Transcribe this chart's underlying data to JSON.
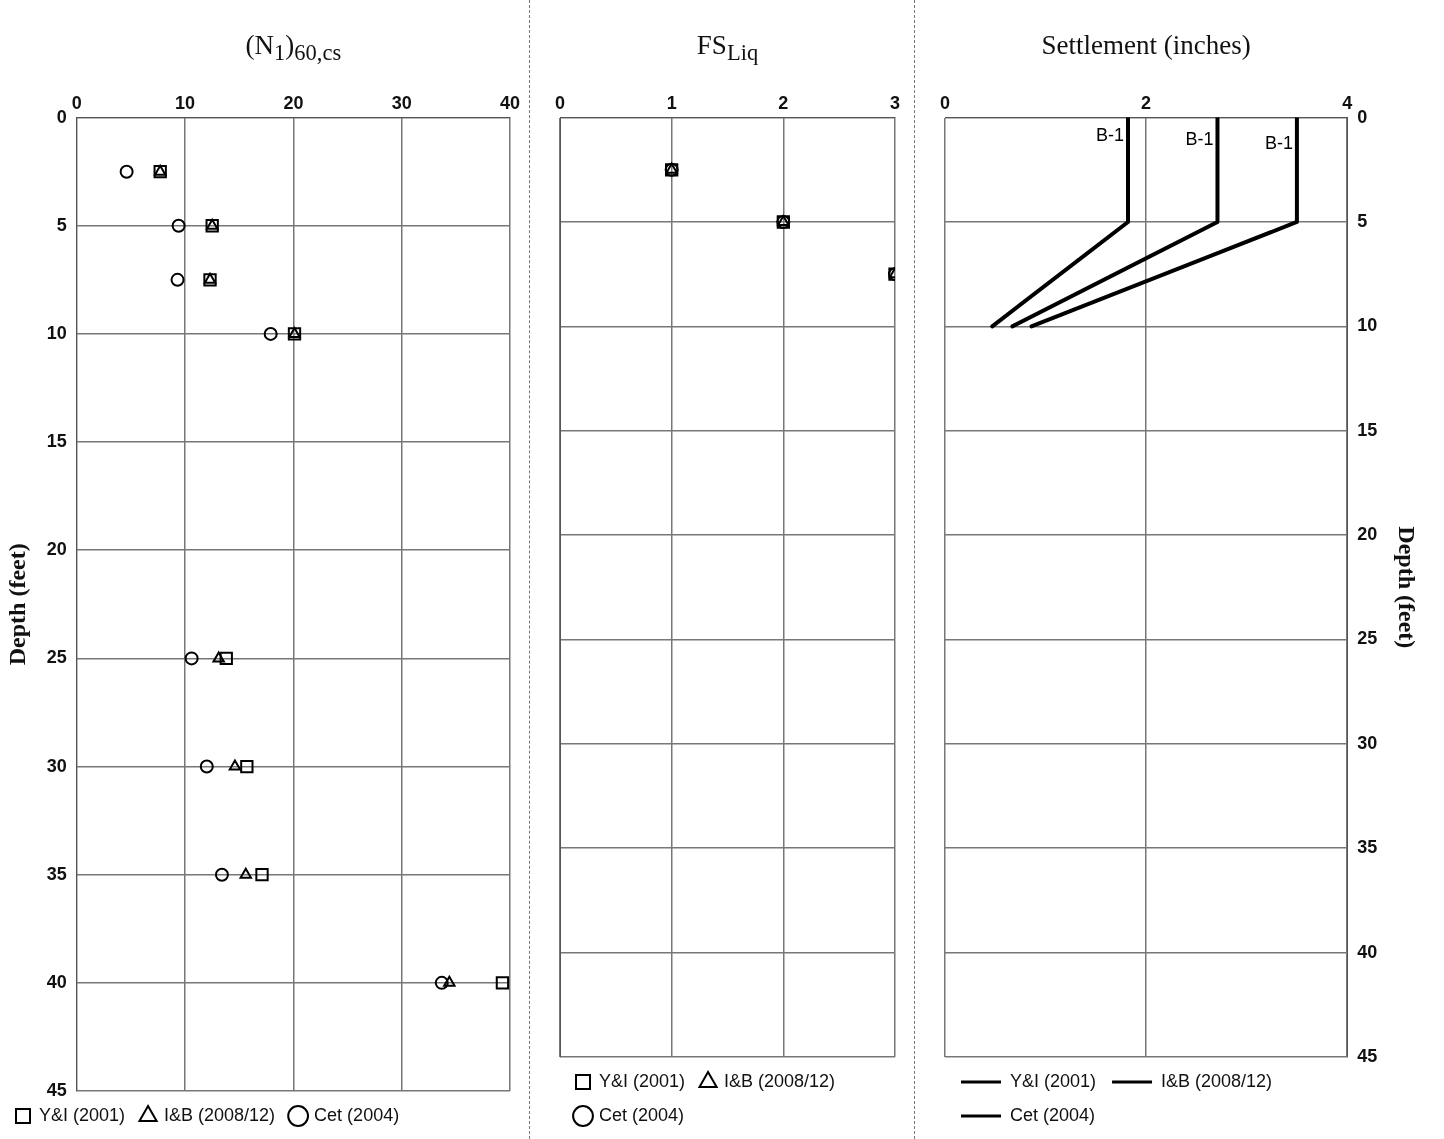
{
  "chart_data": [
    {
      "type": "scatter",
      "title": "(N$_{1}$)$_{60,cs}$",
      "ylabel": "Depth (feet)",
      "xlim": [
        0,
        40
      ],
      "xticks": [
        0,
        10,
        20,
        30,
        40
      ],
      "ylim": [
        45,
        0
      ],
      "yticks": [
        0,
        5,
        10,
        15,
        20,
        25,
        30,
        35,
        40,
        45
      ],
      "grid": true,
      "legend": "bottom",
      "series": [
        {
          "name": "Y&I (2001)",
          "color": "#000000",
          "marker": "square",
          "x": [
            7.7,
            12.5,
            12.3,
            20.1,
            13.8,
            15.7,
            17.1,
            39.3
          ],
          "values": [
            2.5,
            5,
            7.5,
            10,
            25,
            30,
            35,
            40
          ]
        },
        {
          "name": "I&B (2008/12)",
          "color": "#000000",
          "marker": "triangle",
          "x": [
            7.7,
            12.5,
            12.3,
            20.1,
            13.1,
            14.6,
            15.6,
            34.4
          ],
          "values": [
            2.5,
            5,
            7.5,
            10,
            25,
            30,
            35,
            40
          ]
        },
        {
          "name": "Cet (2004)",
          "color": "#000000",
          "marker": "circle",
          "x": [
            4.6,
            9.4,
            9.3,
            17.9,
            10.6,
            12.0,
            13.4,
            33.7
          ],
          "values": [
            2.5,
            5,
            7.5,
            10,
            25,
            30,
            35,
            40
          ]
        }
      ]
    },
    {
      "type": "scatter",
      "title": "FS$_{Liq}$",
      "xlim": [
        0,
        3
      ],
      "xticks": [
        0,
        1,
        2,
        3
      ],
      "ylim": [
        45,
        0
      ],
      "yticks": [
        0,
        5,
        10,
        15,
        20,
        25,
        30,
        35,
        40,
        45
      ],
      "tick_labels": "x",
      "grid": true,
      "legend": "bottom",
      "series": [
        {
          "name": "Y&I (2001)",
          "color": "#000000",
          "marker": "square",
          "x": [
            1,
            2,
            3
          ],
          "values": [
            2.5,
            5,
            7.5
          ]
        },
        {
          "name": "I&B (2008/12)",
          "color": "#000000",
          "marker": "triangle",
          "x": [
            1,
            2,
            3
          ],
          "values": [
            2.5,
            5,
            7.5
          ]
        },
        {
          "name": "Cet (2004)",
          "color": "#000000",
          "marker": "circle",
          "x": [
            1,
            2,
            3
          ],
          "values": [
            2.5,
            5,
            7.5
          ]
        }
      ]
    },
    {
      "type": "line",
      "title": "Settlement (inches)",
      "y2label": "Depth (feet)",
      "xlim": [
        0,
        4
      ],
      "xticks": [
        0,
        2,
        4
      ],
      "y2lim": [
        45,
        0
      ],
      "y2ticks": [
        0,
        5,
        10,
        15,
        20,
        25,
        30,
        35,
        40,
        45
      ],
      "grid": true,
      "legend": "bottom",
      "marker": "none",
      "line_style": "solid",
      "series": [
        {
          "name": "Y&I (2001)",
          "color": "#000000",
          "axis": "y2",
          "x": [
            1.82,
            1.82,
            0.47
          ],
          "values": [
            0,
            5,
            10
          ]
        },
        {
          "name": "I&B (2008/12)",
          "color": "#000000",
          "axis": "y2",
          "x": [
            2.71,
            2.71,
            0.67
          ],
          "values": [
            0,
            5,
            10
          ]
        },
        {
          "name": "Cet (2004)",
          "color": "#000000",
          "axis": "y2",
          "x": [
            3.5,
            3.5,
            0.86
          ],
          "values": [
            0,
            5,
            10
          ]
        }
      ],
      "annotations": [
        "B-1",
        "B-1",
        "B-1"
      ]
    }
  ]
}
